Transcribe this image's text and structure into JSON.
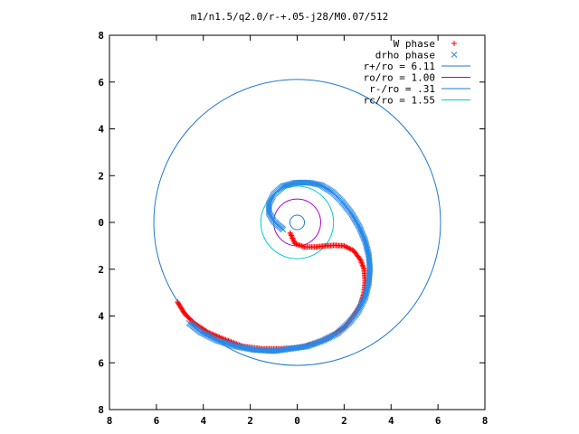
{
  "chart_data": {
    "type": "scatter",
    "title": "m1/n1.5/q2.0/r-+.05-j28/M0.07/512",
    "xlim": [
      -8,
      8
    ],
    "ylim": [
      -8,
      8
    ],
    "x_ticks": [
      -8,
      -6,
      -4,
      -2,
      0,
      2,
      4,
      6,
      8
    ],
    "y_ticks": [
      -8,
      -6,
      -4,
      -2,
      0,
      2,
      4,
      6,
      8
    ],
    "x_tick_labels": [
      "8",
      "6",
      "4",
      "2",
      "0",
      "2",
      "4",
      "6",
      "8"
    ],
    "y_tick_labels": [
      "8",
      "6",
      "4",
      "2",
      "0",
      "2",
      "4",
      "6",
      "8"
    ],
    "xlabel": "",
    "ylabel": "",
    "grid": false,
    "legend_position": "top-right",
    "series": [
      {
        "name": "W phase",
        "marker": "+",
        "color": "#ff0000",
        "points": [
          [
            -0.3,
            -0.45
          ],
          [
            -0.1,
            -0.9
          ],
          [
            0.3,
            -1.05
          ],
          [
            0.8,
            -1.05
          ],
          [
            1.2,
            -1.0
          ],
          [
            1.6,
            -0.98
          ],
          [
            2.0,
            -1.0
          ],
          [
            2.4,
            -1.2
          ],
          [
            2.7,
            -1.6
          ],
          [
            2.85,
            -2.0
          ],
          [
            2.9,
            -2.5
          ],
          [
            2.85,
            -3.0
          ],
          [
            2.7,
            -3.5
          ],
          [
            2.4,
            -4.0
          ],
          [
            2.0,
            -4.5
          ],
          [
            1.4,
            -4.9
          ],
          [
            0.7,
            -5.2
          ],
          [
            0.0,
            -5.35
          ],
          [
            -0.7,
            -5.4
          ],
          [
            -1.5,
            -5.4
          ],
          [
            -2.3,
            -5.3
          ],
          [
            -3.1,
            -5.0
          ],
          [
            -3.8,
            -4.7
          ],
          [
            -4.4,
            -4.3
          ],
          [
            -4.8,
            -3.9
          ],
          [
            -5.1,
            -3.4
          ]
        ]
      },
      {
        "name": "drho phase",
        "marker": "x",
        "color": "#2a8ae6",
        "points": [
          [
            -0.6,
            -0.3
          ],
          [
            -1.0,
            0.05
          ],
          [
            -1.2,
            0.4
          ],
          [
            -1.2,
            0.8
          ],
          [
            -1.0,
            1.2
          ],
          [
            -0.6,
            1.55
          ],
          [
            -0.05,
            1.7
          ],
          [
            0.5,
            1.7
          ],
          [
            1.0,
            1.6
          ],
          [
            1.5,
            1.3
          ],
          [
            1.9,
            0.9
          ],
          [
            2.3,
            0.4
          ],
          [
            2.65,
            -0.2
          ],
          [
            2.9,
            -0.8
          ],
          [
            3.05,
            -1.4
          ],
          [
            3.1,
            -2.0
          ],
          [
            3.05,
            -2.6
          ],
          [
            2.9,
            -3.2
          ],
          [
            2.6,
            -3.8
          ],
          [
            2.2,
            -4.3
          ],
          [
            1.7,
            -4.75
          ],
          [
            1.1,
            -5.05
          ],
          [
            0.4,
            -5.3
          ],
          [
            -0.3,
            -5.4
          ],
          [
            -1.0,
            -5.5
          ],
          [
            -1.8,
            -5.45
          ],
          [
            -2.6,
            -5.3
          ],
          [
            -3.4,
            -5.05
          ],
          [
            -4.1,
            -4.7
          ],
          [
            -4.6,
            -4.3
          ]
        ]
      },
      {
        "name": "r+/ro = 6.11",
        "type": "circle",
        "radius": 6.11,
        "color": "#1f78d1"
      },
      {
        "name": "ro/ro = 1.00",
        "type": "circle",
        "radius": 1.0,
        "color": "#aa00cc"
      },
      {
        "name": "r-/ro = .31",
        "type": "circle",
        "radius": 0.31,
        "color": "#1f78d1"
      },
      {
        "name": "rc/ro = 1.55",
        "type": "circle",
        "radius": 1.55,
        "color": "#00cccc"
      }
    ]
  }
}
